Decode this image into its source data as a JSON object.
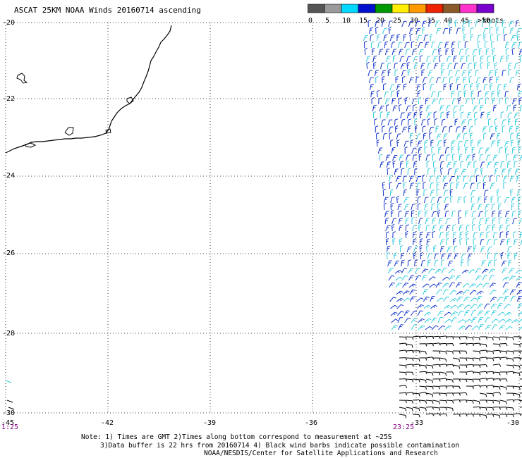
{
  "header": {
    "title": "ASCAT 25KM NOAA Winds 20160714 ascending"
  },
  "legend": {
    "unit": "knots",
    "bins": [
      {
        "label": "0",
        "color": "#555555"
      },
      {
        "label": "5",
        "color": "#9a9a9a"
      },
      {
        "label": "10",
        "color": "#00d8ff"
      },
      {
        "label": "15",
        "color": "#0010cc"
      },
      {
        "label": "20",
        "color": "#009900"
      },
      {
        "label": "25",
        "color": "#ffee00"
      },
      {
        "label": "30",
        "color": "#ff9900"
      },
      {
        "label": "35",
        "color": "#ee2200"
      },
      {
        "label": "40",
        "color": "#8a5a2a"
      },
      {
        "label": "45",
        "color": "#ff33cc"
      },
      {
        "label": ">50",
        "color": "#7700cc"
      }
    ]
  },
  "map": {
    "lat_range": [
      -30,
      -20
    ],
    "lon_range": [
      -45,
      -30
    ],
    "lat_ticks": [
      "-20",
      "-22",
      "-24",
      "-26",
      "-28",
      "-30"
    ],
    "lon_ticks": [
      "-45",
      "-42",
      "-39",
      "-36",
      "-33",
      "-30"
    ],
    "swath_time_start": "1:25",
    "swath_time_end": "23:25",
    "colors": {
      "coastline": "#000000",
      "grid": "#000000",
      "barb_light": "#33ccdd",
      "barb_dark": "#1133cc",
      "barb_contaminated": "#000000"
    }
  },
  "notes": {
    "line1": "Note: 1) Times are GMT 2)Times along bottom correspond to measurement at ~25S",
    "line2": "3)Data buffer is 22 hrs from 20160714 4) Black wind barbs indicate possible contamination",
    "line3": "NOAA/NESDIS/Center for Satellite Applications and Research"
  }
}
